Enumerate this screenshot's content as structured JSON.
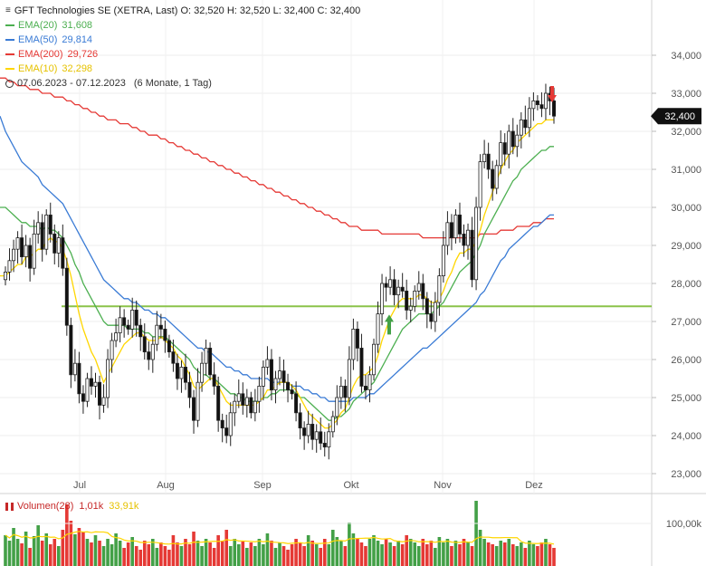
{
  "legend": {
    "title": "GFT Technologies SE (XETRA, Last)  O: 32,520  H: 32,520  L: 32,400  C: 32,400",
    "ema20_label": "EMA(20)",
    "ema20_value": "31,608",
    "ema50_label": "EMA(50)",
    "ema50_value": "29,814",
    "ema200_label": "EMA(200)",
    "ema200_value": "29,726",
    "ema10_label": "EMA(10)",
    "ema10_value": "32,298",
    "range": "07.06.2023 - 07.12.2023",
    "range_note": "(6 Monate, 1 Tag)"
  },
  "volume_legend": {
    "label": "Volumen(28)",
    "value1": "1,01k",
    "value2": "33,91k"
  },
  "colors": {
    "ema20": "#4caf50",
    "ema50": "#3a7bd5",
    "ema200": "#e53935",
    "ema10": "#ffd600",
    "support": "#8bc34a",
    "up_vol": "#43a047",
    "down_vol": "#e53935",
    "arrow_up": "#43a047",
    "arrow_down": "#e53935"
  },
  "chart_data": {
    "type": "candlestick",
    "title": "GFT Technologies SE (XETRA, Last)",
    "x_labels": [
      "Jul",
      "Aug",
      "Sep",
      "Okt",
      "Nov",
      "Dez"
    ],
    "y_ticks": [
      "34,000",
      "33,000",
      "32,000",
      "31,000",
      "30,000",
      "29,000",
      "28,000",
      "27,000",
      "26,000",
      "25,000",
      "24,000",
      "23,000"
    ],
    "ylim": [
      22.7,
      34.6
    ],
    "last_price_label": "32,400",
    "support_level": 27.4,
    "volume_tick": "100,00k",
    "close_series": [
      28.3,
      28.6,
      28.9,
      29.2,
      28.7,
      29.0,
      28.4,
      29.3,
      29.6,
      28.9,
      29.8,
      29.3,
      28.8,
      29.2,
      28.4,
      26.9,
      25.6,
      25.9,
      25.1,
      24.9,
      25.5,
      25.3,
      25.4,
      24.8,
      25.0,
      26.0,
      26.5,
      26.7,
      27.1,
      26.9,
      26.8,
      27.3,
      26.9,
      26.6,
      26.2,
      26.0,
      26.4,
      26.9,
      26.8,
      26.5,
      26.2,
      25.9,
      25.5,
      25.8,
      25.4,
      25.0,
      24.4,
      25.4,
      25.9,
      26.3,
      25.6,
      25.3,
      24.4,
      24.2,
      24.0,
      24.6,
      24.9,
      25.1,
      24.8,
      25.0,
      24.6,
      24.9,
      25.3,
      25.8,
      26.0,
      25.2,
      25.5,
      25.7,
      25.4,
      25.2,
      25.1,
      24.6,
      24.2,
      24.0,
      24.3,
      23.9,
      24.1,
      23.8,
      23.7,
      24.1,
      24.5,
      25.0,
      25.3,
      25.0,
      26.0,
      26.8,
      26.3,
      25.3,
      25.2,
      25.6,
      26.4,
      27.2,
      28.0,
      27.9,
      28.1,
      27.7,
      27.9,
      27.8,
      27.3,
      27.4,
      27.8,
      28.0,
      27.6,
      27.2,
      27.0,
      27.5,
      28.2,
      29.0,
      29.6,
      29.2,
      29.8,
      29.3,
      29.0,
      29.4,
      28.1,
      30.0,
      31.2,
      31.4,
      31.0,
      30.5,
      31.1,
      31.7,
      31.4,
      32.0,
      31.6,
      31.9,
      32.3,
      32.1,
      32.6,
      32.8,
      32.7,
      32.6,
      33.0,
      32.8,
      32.4
    ],
    "ema10_series": [
      28.2,
      28.3,
      28.4,
      28.5,
      28.5,
      28.7,
      28.7,
      28.8,
      28.9,
      28.9,
      29.1,
      29.2,
      29.1,
      29.1,
      28.9,
      28.6,
      28.2,
      27.7,
      27.2,
      26.8,
      26.5,
      26.2,
      26.0,
      25.7,
      25.4,
      25.6,
      25.8,
      26.0,
      26.2,
      26.4,
      26.5,
      26.6,
      26.7,
      26.7,
      26.6,
      26.5,
      26.5,
      26.5,
      26.6,
      26.5,
      26.4,
      26.3,
      26.1,
      26.0,
      25.8,
      25.6,
      25.3,
      25.2,
      25.3,
      25.4,
      25.5,
      25.5,
      25.3,
      25.1,
      24.9,
      24.8,
      24.8,
      24.8,
      24.8,
      24.8,
      24.8,
      24.8,
      24.9,
      25.0,
      25.2,
      25.2,
      25.3,
      25.4,
      25.4,
      25.4,
      25.3,
      25.2,
      25.0,
      24.8,
      24.6,
      24.5,
      24.4,
      24.3,
      24.2,
      24.2,
      24.3,
      24.4,
      24.6,
      24.7,
      25.0,
      25.3,
      25.5,
      25.6,
      25.6,
      25.7,
      25.8,
      26.1,
      26.5,
      26.8,
      27.1,
      27.3,
      27.5,
      27.6,
      27.6,
      27.6,
      27.6,
      27.7,
      27.7,
      27.6,
      27.5,
      27.5,
      27.6,
      27.8,
      28.1,
      28.3,
      28.6,
      28.8,
      28.8,
      28.9,
      28.9,
      29.1,
      29.4,
      29.8,
      30.1,
      30.4,
      30.7,
      31.0,
      31.2,
      31.4,
      31.5,
      31.7,
      31.8,
      31.9,
      32.0,
      32.1,
      32.2,
      32.2,
      32.3,
      32.3,
      32.3
    ],
    "ema20_series": [
      30.0,
      29.9,
      29.8,
      29.7,
      29.6,
      29.6,
      29.5,
      29.5,
      29.5,
      29.4,
      29.5,
      29.4,
      29.4,
      29.3,
      29.2,
      29.0,
      28.8,
      28.5,
      28.3,
      28.0,
      27.8,
      27.6,
      27.4,
      27.2,
      27.0,
      26.9,
      26.9,
      26.9,
      26.9,
      26.9,
      26.8,
      26.8,
      26.8,
      26.8,
      26.7,
      26.7,
      26.6,
      26.6,
      26.6,
      26.6,
      26.5,
      26.4,
      26.3,
      26.2,
      26.1,
      26.0,
      25.8,
      25.7,
      25.6,
      25.6,
      25.5,
      25.5,
      25.4,
      25.3,
      25.2,
      25.1,
      25.1,
      25.0,
      25.0,
      24.9,
      24.9,
      24.9,
      24.9,
      25.0,
      25.0,
      25.1,
      25.1,
      25.2,
      25.2,
      25.2,
      25.2,
      25.1,
      25.0,
      25.0,
      24.9,
      24.8,
      24.7,
      24.6,
      24.5,
      24.4,
      24.4,
      24.5,
      24.5,
      24.6,
      24.7,
      24.9,
      25.0,
      25.1,
      25.2,
      25.3,
      25.4,
      25.6,
      25.8,
      26.0,
      26.2,
      26.4,
      26.6,
      26.8,
      26.9,
      27.0,
      27.1,
      27.2,
      27.2,
      27.2,
      27.2,
      27.3,
      27.4,
      27.5,
      27.7,
      27.9,
      28.1,
      28.3,
      28.4,
      28.5,
      28.6,
      28.8,
      29.0,
      29.3,
      29.5,
      29.7,
      29.9,
      30.1,
      30.3,
      30.5,
      30.7,
      30.8,
      31.0,
      31.1,
      31.2,
      31.3,
      31.4,
      31.5,
      31.5,
      31.6,
      31.6
    ],
    "ema50_series": [
      32.0,
      31.8,
      31.6,
      31.4,
      31.2,
      31.1,
      31.0,
      30.9,
      30.8,
      30.6,
      30.5,
      30.4,
      30.3,
      30.2,
      30.1,
      29.9,
      29.7,
      29.5,
      29.3,
      29.1,
      28.9,
      28.7,
      28.5,
      28.3,
      28.1,
      28.0,
      27.9,
      27.8,
      27.7,
      27.6,
      27.6,
      27.5,
      27.5,
      27.4,
      27.3,
      27.3,
      27.2,
      27.2,
      27.1,
      27.1,
      27.0,
      26.9,
      26.8,
      26.7,
      26.6,
      26.5,
      26.4,
      26.3,
      26.3,
      26.2,
      26.2,
      26.1,
      26.0,
      25.9,
      25.8,
      25.8,
      25.7,
      25.7,
      25.6,
      25.6,
      25.5,
      25.5,
      25.5,
      25.5,
      25.5,
      25.4,
      25.4,
      25.4,
      25.4,
      25.4,
      25.3,
      25.3,
      25.3,
      25.2,
      25.2,
      25.1,
      25.1,
      25.0,
      25.0,
      24.9,
      24.9,
      24.9,
      24.9,
      24.9,
      24.9,
      25.0,
      25.0,
      25.0,
      25.0,
      25.1,
      25.1,
      25.2,
      25.3,
      25.4,
      25.5,
      25.6,
      25.7,
      25.8,
      25.9,
      26.0,
      26.1,
      26.2,
      26.3,
      26.3,
      26.4,
      26.5,
      26.6,
      26.7,
      26.8,
      26.9,
      27.0,
      27.1,
      27.2,
      27.3,
      27.4,
      27.5,
      27.7,
      27.8,
      28.0,
      28.2,
      28.4,
      28.6,
      28.7,
      28.9,
      29.0,
      29.1,
      29.2,
      29.3,
      29.4,
      29.5,
      29.5,
      29.6,
      29.7,
      29.8,
      29.8
    ],
    "ema200_series": [
      33.4,
      33.3,
      33.3,
      33.2,
      33.2,
      33.2,
      33.1,
      33.1,
      33.1,
      33.0,
      33.0,
      33.0,
      32.9,
      32.9,
      32.9,
      32.8,
      32.8,
      32.7,
      32.7,
      32.6,
      32.6,
      32.5,
      32.5,
      32.4,
      32.4,
      32.3,
      32.3,
      32.3,
      32.2,
      32.2,
      32.2,
      32.1,
      32.1,
      32.0,
      32.0,
      31.9,
      31.9,
      31.9,
      31.8,
      31.8,
      31.7,
      31.7,
      31.6,
      31.6,
      31.5,
      31.5,
      31.4,
      31.4,
      31.3,
      31.3,
      31.2,
      31.2,
      31.1,
      31.1,
      31.0,
      31.0,
      30.9,
      30.9,
      30.8,
      30.8,
      30.7,
      30.7,
      30.6,
      30.6,
      30.5,
      30.5,
      30.4,
      30.4,
      30.3,
      30.3,
      30.2,
      30.2,
      30.1,
      30.1,
      30.0,
      30.0,
      29.9,
      29.9,
      29.8,
      29.8,
      29.7,
      29.7,
      29.6,
      29.6,
      29.5,
      29.5,
      29.5,
      29.4,
      29.4,
      29.4,
      29.4,
      29.4,
      29.3,
      29.3,
      29.3,
      29.3,
      29.3,
      29.3,
      29.3,
      29.3,
      29.3,
      29.3,
      29.2,
      29.2,
      29.2,
      29.2,
      29.2,
      29.2,
      29.2,
      29.2,
      29.2,
      29.2,
      29.2,
      29.2,
      29.2,
      29.2,
      29.3,
      29.3,
      29.3,
      29.3,
      29.3,
      29.4,
      29.4,
      29.4,
      29.4,
      29.5,
      29.5,
      29.5,
      29.5,
      29.6,
      29.6,
      29.6,
      29.7,
      29.7,
      29.7
    ],
    "volume_series": [
      34,
      28,
      42,
      30,
      25,
      38,
      20,
      33,
      45,
      28,
      36,
      24,
      30,
      22,
      40,
      68,
      50,
      35,
      42,
      38,
      30,
      26,
      34,
      28,
      22,
      30,
      24,
      36,
      28,
      20,
      26,
      32,
      22,
      18,
      28,
      24,
      30,
      20,
      26,
      22,
      18,
      34,
      26,
      22,
      30,
      24,
      38,
      28,
      22,
      30,
      26,
      20,
      34,
      28,
      40,
      22,
      30,
      24,
      28,
      20,
      26,
      22,
      30,
      24,
      36,
      28,
      20,
      26,
      22,
      18,
      24,
      30,
      26,
      22,
      34,
      28,
      24,
      20,
      30,
      24,
      40,
      32,
      28,
      22,
      48,
      36,
      30,
      26,
      22,
      30,
      34,
      28,
      24,
      30,
      26,
      22,
      28,
      24,
      34,
      30,
      26,
      22,
      30,
      24,
      28,
      20,
      32,
      26,
      30,
      22,
      28,
      24,
      30,
      26,
      22,
      72,
      40,
      30,
      26,
      24,
      22,
      28,
      26,
      30,
      24,
      22,
      26,
      20,
      28,
      24,
      22,
      26,
      30,
      24,
      20
    ]
  }
}
